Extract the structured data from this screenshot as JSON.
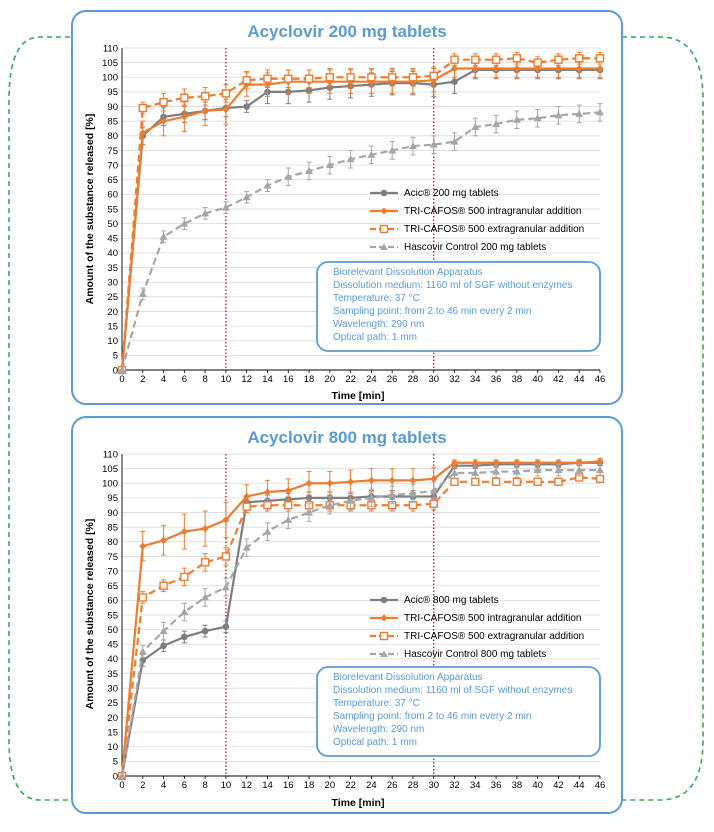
{
  "chart_data": [
    {
      "type": "line",
      "title": "Acyclovir 200 mg tablets",
      "xlabel": "Time [min]",
      "ylabel": "Amount of the substance released [%]",
      "x": [
        0,
        2,
        4,
        6,
        8,
        10,
        12,
        14,
        16,
        18,
        20,
        22,
        24,
        26,
        28,
        30,
        32,
        34,
        36,
        38,
        40,
        42,
        44,
        46
      ],
      "xlim": [
        0,
        46
      ],
      "ylim": [
        0,
        110
      ],
      "xticks": [
        "0",
        "2",
        "4",
        "6",
        "8",
        "10",
        "12",
        "14",
        "16",
        "18",
        "20",
        "22",
        "24",
        "26",
        "28",
        "30",
        "32",
        "34",
        "36",
        "38",
        "40",
        "42",
        "44",
        "46"
      ],
      "yticks": [
        "0",
        "5",
        "10",
        "15",
        "20",
        "25",
        "30",
        "35",
        "40",
        "45",
        "50",
        "55",
        "60",
        "65",
        "70",
        "75",
        "80",
        "85",
        "90",
        "95",
        "100",
        "105",
        "110"
      ],
      "vlines": [
        10,
        30
      ],
      "series": [
        {
          "name": "Acic® 200 mg tablets",
          "color": "#7f7f7f",
          "marker": "circle",
          "dash": "solid",
          "values": [
            0,
            80,
            86.5,
            87.5,
            88.5,
            89.5,
            90,
            95,
            95,
            95.5,
            96.5,
            97,
            97.5,
            98,
            98,
            97.5,
            98.5,
            102.5,
            102.5,
            102.5,
            102.5,
            102.5,
            102.5,
            102.5
          ],
          "errors": [
            0,
            3,
            3,
            3,
            3,
            3,
            2,
            4,
            4,
            4,
            4,
            4,
            4,
            4,
            4,
            4,
            4,
            3,
            3,
            3,
            3,
            3,
            3,
            3
          ]
        },
        {
          "name": "TRI-CAFOS® 500 intragranular addition",
          "color": "#ed7d31",
          "marker": "diamond",
          "dash": "solid",
          "values": [
            0,
            81,
            85,
            86.5,
            88.5,
            89,
            97.5,
            97.5,
            98.5,
            98.5,
            98.5,
            98.5,
            98.5,
            98.5,
            98.5,
            99,
            103,
            103,
            103,
            103,
            103,
            103,
            103,
            103
          ],
          "errors": [
            0,
            4,
            5,
            5,
            5,
            5,
            4,
            4,
            4,
            4,
            4,
            4,
            4,
            4,
            4,
            4,
            3,
            3,
            3,
            3,
            3,
            3,
            3,
            3
          ]
        },
        {
          "name": "TRI-CAFOS® 500 extragranular addition",
          "color": "#ed7d31",
          "marker": "square",
          "dash": "dashed",
          "values": [
            0,
            89.5,
            91.5,
            93,
            93.5,
            94.5,
            99,
            99.5,
            99.5,
            99.5,
            100,
            100,
            100,
            100,
            100,
            100.5,
            106,
            106,
            106,
            106.5,
            105,
            106,
            106.5,
            106.5
          ],
          "errors": [
            0,
            2,
            3,
            3,
            3,
            3,
            3,
            3,
            3,
            3,
            3,
            3,
            3,
            3,
            3,
            3,
            2,
            2,
            2,
            2,
            2,
            2,
            2,
            2
          ]
        },
        {
          "name": "Hascovir Control 200 mg tablets",
          "color": "#a6a6a6",
          "marker": "triangle",
          "dash": "dashed",
          "values": [
            0,
            26,
            45.5,
            50,
            53.5,
            55.5,
            59,
            63,
            66,
            68,
            70,
            72,
            73.5,
            75,
            76.5,
            77,
            78,
            83,
            84,
            85.5,
            86,
            87,
            87.5,
            88
          ],
          "errors": [
            0,
            2,
            2,
            2,
            2,
            2,
            2,
            2,
            3,
            3,
            3,
            3,
            3,
            3,
            3,
            3,
            3,
            3,
            3,
            3,
            3,
            3,
            3,
            3
          ]
        }
      ],
      "info_box": [
        "Biorelevant  Dissolution Apparatus",
        "Dissolution  medium:  1160 ml of SGF without enzymes",
        "Temperature:  37 °C",
        "Sampling point: from 2 to  46 min every 2 min",
        "Wavelength:  290 nm",
        "Optical path:  1 mm"
      ]
    },
    {
      "type": "line",
      "title": "Acyclovir 800 mg tablets",
      "xlabel": "Time [min]",
      "ylabel": "Amount of the substance released [%]",
      "x": [
        0,
        2,
        4,
        6,
        8,
        10,
        12,
        14,
        16,
        18,
        20,
        22,
        24,
        26,
        28,
        30,
        32,
        34,
        36,
        38,
        40,
        42,
        44,
        46
      ],
      "xlim": [
        0,
        46
      ],
      "ylim": [
        0,
        110
      ],
      "xticks": [
        "0",
        "2",
        "4",
        "6",
        "8",
        "10",
        "12",
        "14",
        "16",
        "18",
        "20",
        "22",
        "24",
        "26",
        "28",
        "30",
        "32",
        "34",
        "36",
        "38",
        "40",
        "42",
        "44",
        "46"
      ],
      "yticks": [
        "0",
        "5",
        "10",
        "15",
        "20",
        "25",
        "30",
        "35",
        "40",
        "45",
        "50",
        "55",
        "60",
        "65",
        "70",
        "75",
        "80",
        "85",
        "90",
        "95",
        "100",
        "105",
        "110"
      ],
      "vlines": [
        10,
        30
      ],
      "series": [
        {
          "name": "Acic® 800 mg tablets",
          "color": "#7f7f7f",
          "marker": "circle",
          "dash": "solid",
          "values": [
            0,
            39.5,
            44.5,
            47.5,
            49.5,
            51,
            93.5,
            94,
            94.5,
            95,
            95,
            95,
            95.5,
            95.5,
            95.5,
            95.5,
            106,
            106,
            106.5,
            106.5,
            106.5,
            106.5,
            107,
            107
          ],
          "errors": [
            0,
            2,
            2,
            2,
            2,
            2,
            2,
            2,
            2,
            2,
            2,
            2,
            2,
            2,
            2,
            2,
            1,
            1,
            1,
            1,
            1,
            1,
            1,
            1
          ]
        },
        {
          "name": "TRI-CAFOS® 500 intragranular addition",
          "color": "#ed7d31",
          "marker": "diamond",
          "dash": "solid",
          "values": [
            0,
            78.5,
            80.5,
            83.5,
            84.5,
            87.5,
            95.5,
            97,
            97.5,
            100,
            100,
            100.5,
            101,
            101,
            101,
            101.5,
            107,
            107,
            107,
            107,
            107,
            107,
            107,
            107.5
          ],
          "errors": [
            0,
            5,
            5,
            6,
            6,
            6,
            4,
            4,
            4,
            4,
            4,
            4,
            4,
            4,
            4,
            4,
            1,
            1,
            1,
            1,
            1,
            1,
            1,
            1
          ]
        },
        {
          "name": "TRI-CAFOS® 500 extragranular addition",
          "color": "#ed7d31",
          "marker": "square",
          "dash": "dashed",
          "values": [
            0,
            61,
            65,
            68,
            73,
            75,
            92,
            92.5,
            92.5,
            92.5,
            92.5,
            92.5,
            92.5,
            92.5,
            92.5,
            93,
            100.5,
            100.5,
            100.5,
            100.5,
            100.5,
            100.5,
            102,
            101.5
          ],
          "errors": [
            0,
            2,
            2,
            3,
            3,
            3,
            2,
            2,
            2,
            2,
            2,
            2,
            2,
            2,
            2,
            2,
            1,
            1,
            1,
            1,
            1,
            1,
            1,
            1
          ]
        },
        {
          "name": "Hascovir Control 800 mg tablets",
          "color": "#a6a6a6",
          "marker": "triangle",
          "dash": "dashed",
          "values": [
            0,
            42.5,
            49.5,
            56,
            61,
            64.5,
            78,
            83.5,
            87.5,
            90,
            92.5,
            94,
            95,
            96,
            96.5,
            97.5,
            103.5,
            103.5,
            104,
            104,
            104.5,
            104.5,
            104.5,
            104.5
          ],
          "errors": [
            0,
            2,
            3,
            3,
            3,
            3,
            3,
            3,
            3,
            3,
            3,
            3,
            3,
            3,
            3,
            3,
            2,
            2,
            2,
            2,
            2,
            2,
            2,
            2
          ]
        }
      ],
      "info_box": [
        "Biorelevant  Dissolution Apparatus",
        "Dissolution  medium:  1160 ml of SGF without enzymes",
        "Temperature:  37 °C",
        "Sampling point: from 2 to  46 min every 2 min",
        "Wavelength:  290 nm",
        "Optical path:  1 mm"
      ]
    }
  ]
}
